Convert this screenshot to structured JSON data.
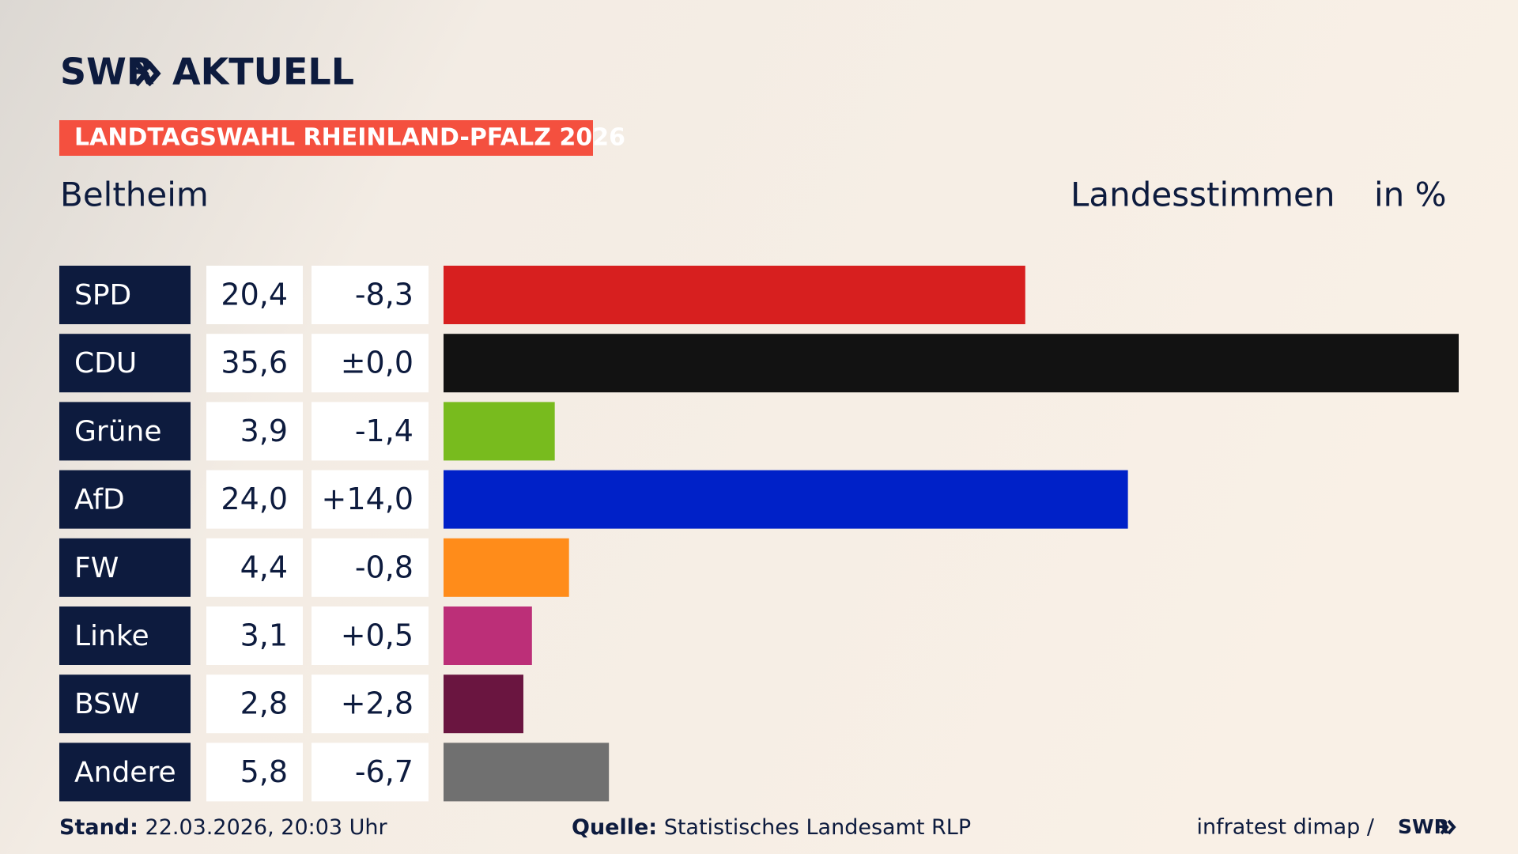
{
  "chart_data": {
    "type": "bar",
    "brand": "SWR",
    "brand_suffix": "AKTUELL",
    "banner": "LANDTAGSWAHL RHEINLAND-PFALZ 2026",
    "title": "Beltheim",
    "subtitle": "Landesstimmen",
    "unit": "in %",
    "categories": [
      "SPD",
      "CDU",
      "Grüne",
      "AfD",
      "FW",
      "Linke",
      "BSW",
      "Andere"
    ],
    "values": [
      20.4,
      35.6,
      3.9,
      24.0,
      4.4,
      3.1,
      2.8,
      5.8
    ],
    "value_labels": [
      "20,4",
      "35,6",
      "3,9",
      "24,0",
      "4,4",
      "3,1",
      "2,8",
      "5,8"
    ],
    "changes": [
      -8.3,
      0.0,
      -1.4,
      14.0,
      -0.8,
      0.5,
      2.8,
      -6.7
    ],
    "change_labels": [
      "-8,3",
      "±0,0",
      "-1,4",
      "+14,0",
      "-0,8",
      "+0,5",
      "+2,8",
      "-6,7"
    ],
    "colors": [
      "#d71f1f",
      "#121212",
      "#78bb1e",
      "#0021c8",
      "#ff8c1a",
      "#bc2f78",
      "#6a1540",
      "#707070"
    ],
    "xlim": [
      0,
      35.6
    ],
    "footer": {
      "stand_label": "Stand:",
      "stand": "22.03.2026, 20:03 Uhr",
      "source_label": "Quelle:",
      "source": "Statistisches Landesamt RLP",
      "credit": "infratest dimap /",
      "credit_brand": "SWR"
    }
  }
}
